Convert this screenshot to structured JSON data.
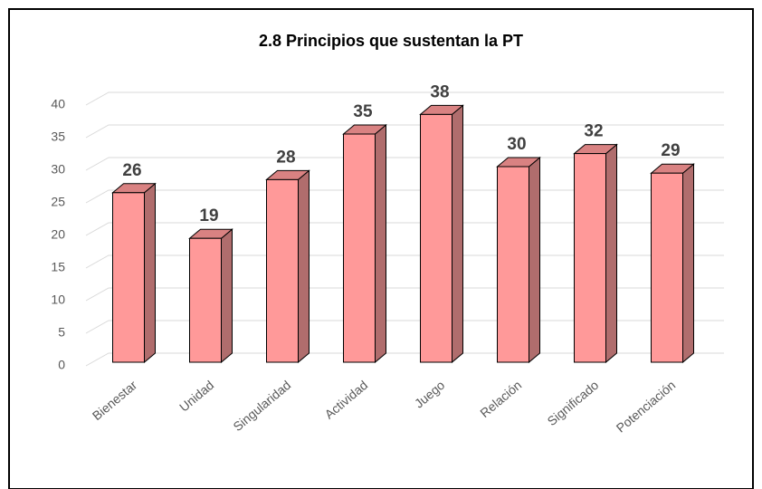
{
  "chart_data": {
    "type": "bar",
    "title": "2.8 Principios que sustentan  la PT",
    "categories": [
      "Bienestar",
      "Unidad",
      "Singularidad",
      "Actividad",
      "Juego",
      "Relación",
      "Significado",
      "Potenciación"
    ],
    "values": [
      26,
      19,
      28,
      35,
      38,
      30,
      32,
      29
    ],
    "color": "#ff9999",
    "ylim": [
      0,
      40
    ],
    "yticks": [
      0,
      5,
      10,
      15,
      20,
      25,
      30,
      35,
      40
    ],
    "grid": true
  }
}
